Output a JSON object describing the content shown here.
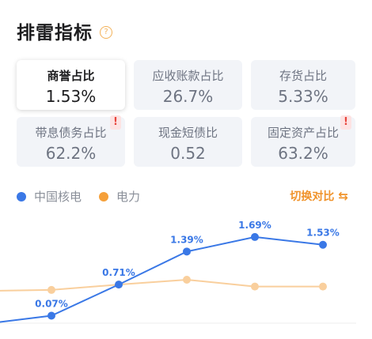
{
  "header": {
    "title": "排雷指标",
    "help_icon": "question-circle-icon",
    "help_glyph": "?"
  },
  "metrics": [
    {
      "label": "商誉占比",
      "value": "1.53%",
      "active": true,
      "warning": false
    },
    {
      "label": "应收账款占比",
      "value": "26.7%",
      "active": false,
      "warning": false
    },
    {
      "label": "存货占比",
      "value": "5.33%",
      "active": false,
      "warning": false
    },
    {
      "label": "带息债务占比",
      "value": "62.2%",
      "active": false,
      "warning": true
    },
    {
      "label": "现金短债比",
      "value": "0.52",
      "active": false,
      "warning": false
    },
    {
      "label": "固定资产占比",
      "value": "63.2%",
      "active": false,
      "warning": true
    }
  ],
  "warning_glyph": "!",
  "legend": {
    "company": "中国核电",
    "industry": "电力"
  },
  "switch": {
    "label": "切换对比",
    "icon": "switch-icon",
    "glyph": "⇆"
  },
  "colors": {
    "company": "#3a78e6",
    "industry": "#f5a03a",
    "industry_line": "#f9cf9d",
    "warn": "#e8453c"
  },
  "chart_data": {
    "type": "line",
    "series": [
      {
        "name": "中国核电",
        "values": [
          -0.1,
          0.07,
          0.71,
          1.39,
          1.69,
          1.53
        ],
        "labels": [
          "",
          "0.07%",
          "0.71%",
          "1.39%",
          "1.69%",
          "1.53%"
        ]
      },
      {
        "name": "电力",
        "values": [
          0.58,
          0.6,
          0.71,
          0.81,
          0.67,
          0.67
        ]
      }
    ],
    "ylim": [
      -0.15,
      1.9
    ],
    "grid": false
  }
}
